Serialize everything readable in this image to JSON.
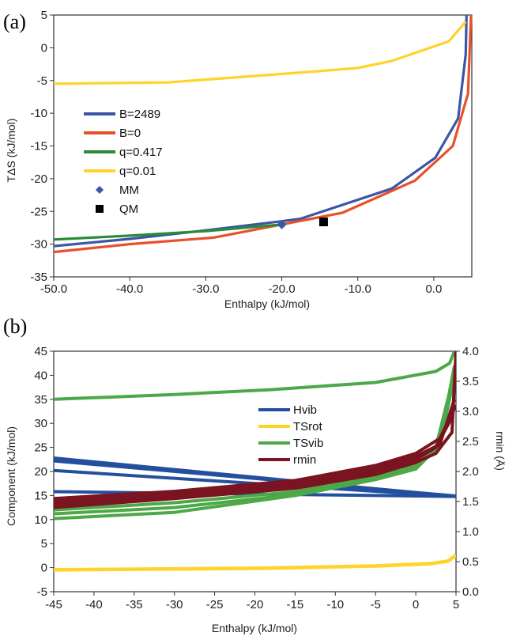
{
  "chart_data": [
    {
      "panel_label": "(a)",
      "type": "line",
      "xlabel": "Enthalpy (kJ/mol)",
      "ylabel": "TΔS (kJ/mol)",
      "xlim": [
        -50,
        5
      ],
      "ylim": [
        -35,
        5
      ],
      "x_ticks": [
        "-50.0",
        "-40.0",
        "-30.0",
        "-20.0",
        "-10.0",
        "0.0"
      ],
      "y_ticks": [
        "-35",
        "-30",
        "-25",
        "-20",
        "-15",
        "-10",
        "-5",
        "0",
        "5"
      ],
      "legend_position": "left",
      "series": [
        {
          "name": "B=2489",
          "color": "#3a56a5",
          "points": [
            [
              -50,
              -30.3
            ],
            [
              -40,
              -29.2
            ],
            [
              -30,
              -27.9
            ],
            [
              -20,
              -26.5
            ],
            [
              -17.5,
              -26.1
            ],
            [
              -5.5,
              -21.5
            ],
            [
              0.2,
              -16.8
            ],
            [
              3.2,
              -10.8
            ],
            [
              4.2,
              -1
            ],
            [
              4.3,
              5
            ]
          ]
        },
        {
          "name": "B=0",
          "color": "#e8502b",
          "points": [
            [
              -50,
              -31.2
            ],
            [
              -40,
              -30
            ],
            [
              -29,
              -29
            ],
            [
              -20,
              -27
            ],
            [
              -12,
              -25.2
            ],
            [
              -2.5,
              -20.3
            ],
            [
              2.5,
              -15
            ],
            [
              4.5,
              -7
            ],
            [
              4.9,
              5
            ]
          ]
        },
        {
          "name": "q=0.417",
          "color": "#2a8a3a",
          "points": [
            [
              -50,
              -29.3
            ],
            [
              -40,
              -28.7
            ],
            [
              -30,
              -28
            ],
            [
              -20,
              -27
            ]
          ]
        },
        {
          "name": "q=0.01",
          "color": "#ffd32a",
          "points": [
            [
              -50,
              -5.5
            ],
            [
              -35,
              -5.3
            ],
            [
              -20,
              -4
            ],
            [
              -10,
              -3.1
            ],
            [
              -5.5,
              -2
            ],
            [
              2,
              1
            ],
            [
              4.2,
              4
            ]
          ]
        }
      ],
      "markers": [
        {
          "name": "MM",
          "shape": "diamond",
          "color": "#3a56a5",
          "x": -20,
          "y": -27
        },
        {
          "name": "QM",
          "shape": "square",
          "color": "#000000",
          "x": -14.5,
          "y": -26.6
        }
      ]
    },
    {
      "panel_label": "(b)",
      "type": "line",
      "xlabel": "Enthalpy (kJ/mol)",
      "ylabel": "Component (kJ/mol)",
      "y2label": "rmin (Å)",
      "xlim": [
        -45,
        5
      ],
      "ylim": [
        -5,
        45
      ],
      "y2lim": [
        0,
        4
      ],
      "x_ticks": [
        "-45",
        "-40",
        "-35",
        "-30",
        "-25",
        "-20",
        "-15",
        "-10",
        "-5",
        "0",
        "5"
      ],
      "y_ticks": [
        "-5",
        "0",
        "5",
        "10",
        "15",
        "20",
        "25",
        "30",
        "35",
        "40",
        "45"
      ],
      "y2_ticks": [
        "0.0",
        "0.5",
        "1.0",
        "1.5",
        "2.0",
        "2.5",
        "3.0",
        "3.5",
        "4.0"
      ],
      "legend_position": "center",
      "series": [
        {
          "name": "Hvib",
          "color": "#23509e",
          "axis": "left",
          "lines": [
            [
              [
                -45,
                22.8
              ],
              [
                5,
                14.8
              ]
            ],
            [
              [
                -45,
                22.2
              ],
              [
                5,
                14.9
              ]
            ],
            [
              [
                -45,
                20.2
              ],
              [
                5,
                14.8
              ]
            ],
            [
              [
                -45,
                15.8
              ],
              [
                5,
                14.8
              ]
            ]
          ]
        },
        {
          "name": "TSrot",
          "color": "#ffd32a",
          "axis": "left",
          "lines": [
            [
              [
                -45,
                -0.5
              ],
              [
                -20,
                -0.2
              ],
              [
                -5,
                0.3
              ],
              [
                2,
                0.8
              ],
              [
                4,
                1.3
              ],
              [
                5,
                2.5
              ]
            ],
            [
              [
                -45,
                -0.4
              ],
              [
                -20,
                -0.1
              ],
              [
                -5,
                0.4
              ],
              [
                2,
                0.9
              ],
              [
                4,
                1.4
              ],
              [
                5,
                2.7
              ]
            ]
          ]
        },
        {
          "name": "TSvib",
          "color": "#4da848",
          "axis": "left",
          "lines": [
            [
              [
                -45,
                35
              ],
              [
                -30,
                36
              ],
              [
                -18,
                37
              ],
              [
                -5,
                38.5
              ],
              [
                2.5,
                40.8
              ],
              [
                4.2,
                42.5
              ],
              [
                4.8,
                45
              ]
            ],
            [
              [
                -45,
                12
              ],
              [
                -30,
                13.5
              ],
              [
                -15,
                15.8
              ],
              [
                -5,
                19
              ],
              [
                0,
                21.5
              ],
              [
                2.5,
                25
              ],
              [
                4.5,
                38.5
              ]
            ],
            [
              [
                -45,
                11.2
              ],
              [
                -30,
                12.5
              ],
              [
                -15,
                15.2
              ],
              [
                -5,
                18.5
              ],
              [
                0,
                21
              ],
              [
                3,
                26
              ],
              [
                4.8,
                42
              ]
            ],
            [
              [
                -45,
                10.2
              ],
              [
                -30,
                11.5
              ],
              [
                -15,
                15
              ],
              [
                -5,
                18.3
              ],
              [
                0,
                20.5
              ],
              [
                3,
                25.5
              ],
              [
                4.7,
                39
              ]
            ]
          ]
        },
        {
          "name": "rmin",
          "color": "#7a1420",
          "axis": "right",
          "lines": [
            [
              [
                -45,
                1.55
              ],
              [
                -30,
                1.67
              ],
              [
                -15,
                1.85
              ],
              [
                -5,
                2.1
              ],
              [
                0,
                2.3
              ],
              [
                3,
                2.55
              ],
              [
                5,
                3.1
              ]
            ],
            [
              [
                -45,
                1.5
              ],
              [
                -30,
                1.62
              ],
              [
                -15,
                1.8
              ],
              [
                -5,
                2.05
              ],
              [
                0,
                2.25
              ],
              [
                3,
                2.45
              ],
              [
                4.8,
                3.2
              ]
            ],
            [
              [
                -45,
                1.45
              ],
              [
                -30,
                1.58
              ],
              [
                -15,
                1.75
              ],
              [
                -5,
                2.0
              ],
              [
                0,
                2.2
              ],
              [
                2.5,
                2.4
              ],
              [
                4.5,
                2.9
              ]
            ],
            [
              [
                -45,
                1.4
              ],
              [
                -30,
                1.55
              ],
              [
                -15,
                1.72
              ],
              [
                -5,
                1.95
              ],
              [
                0,
                2.15
              ],
              [
                2.5,
                2.3
              ],
              [
                4.5,
                2.65
              ],
              [
                5,
                4.0
              ]
            ]
          ]
        }
      ]
    }
  ]
}
